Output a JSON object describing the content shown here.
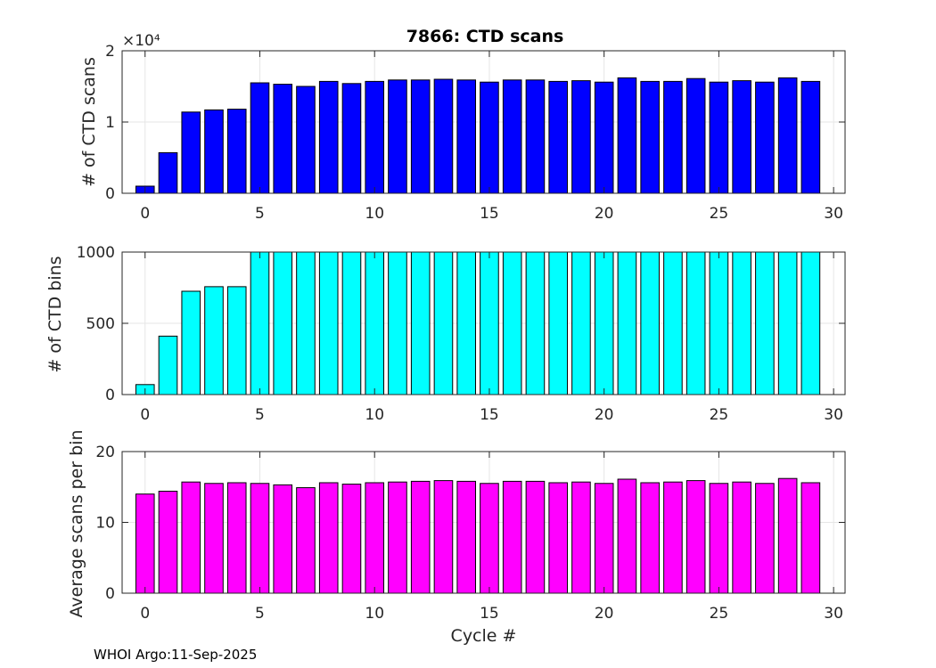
{
  "figure": {
    "title": "7866: CTD scans",
    "footer": "WHOI Argo:11-Sep-2025"
  },
  "chart_data": [
    {
      "type": "bar",
      "title": "7866: CTD scans",
      "xlabel": "",
      "ylabel": "# of CTD scans",
      "color": "#0000ff",
      "exponent_label": "×10⁴",
      "xlim": [
        -1,
        30.5
      ],
      "ylim": [
        0,
        20000
      ],
      "xticks": [
        0,
        5,
        10,
        15,
        20,
        25,
        30
      ],
      "yticks": [
        0,
        10000,
        20000
      ],
      "ytick_labels": [
        "0",
        "1",
        "2"
      ],
      "x": [
        0,
        1,
        2,
        3,
        4,
        5,
        6,
        7,
        8,
        9,
        10,
        11,
        12,
        13,
        14,
        15,
        16,
        17,
        18,
        19,
        20,
        21,
        22,
        23,
        24,
        25,
        26,
        27,
        28,
        29
      ],
      "values": [
        1000,
        5700,
        11400,
        11700,
        11800,
        15500,
        15300,
        15000,
        15700,
        15400,
        15700,
        15900,
        15900,
        16000,
        15900,
        15600,
        15900,
        15900,
        15700,
        15800,
        15600,
        16200,
        15700,
        15700,
        16100,
        15600,
        15800,
        15600,
        16200,
        15700
      ],
      "grid": true
    },
    {
      "type": "bar",
      "title": "",
      "xlabel": "",
      "ylabel": "# of CTD bins",
      "color": "#00ffff",
      "xlim": [
        -1,
        30.5
      ],
      "ylim": [
        0,
        1000
      ],
      "xticks": [
        0,
        5,
        10,
        15,
        20,
        25,
        30
      ],
      "yticks": [
        0,
        500,
        1000
      ],
      "ytick_labels": [
        "0",
        "500",
        "1000"
      ],
      "x": [
        0,
        1,
        2,
        3,
        4,
        5,
        6,
        7,
        8,
        9,
        10,
        11,
        12,
        13,
        14,
        15,
        16,
        17,
        18,
        19,
        20,
        21,
        22,
        23,
        24,
        25,
        26,
        27,
        28,
        29
      ],
      "values": [
        70,
        410,
        725,
        757,
        757,
        1000,
        1000,
        1000,
        1000,
        1000,
        1000,
        1000,
        1000,
        1000,
        1000,
        1000,
        1000,
        1000,
        1000,
        1000,
        1000,
        1000,
        1000,
        1000,
        1000,
        1000,
        1000,
        1000,
        1000,
        1000
      ],
      "grid": true
    },
    {
      "type": "bar",
      "title": "",
      "xlabel": "Cycle #",
      "ylabel": "Average scans per bin",
      "color": "#ff00ff",
      "xlim": [
        -1,
        30.5
      ],
      "ylim": [
        0,
        20
      ],
      "xticks": [
        0,
        5,
        10,
        15,
        20,
        25,
        30
      ],
      "yticks": [
        0,
        10,
        20
      ],
      "ytick_labels": [
        "0",
        "10",
        "20"
      ],
      "x": [
        0,
        1,
        2,
        3,
        4,
        5,
        6,
        7,
        8,
        9,
        10,
        11,
        12,
        13,
        14,
        15,
        16,
        17,
        18,
        19,
        20,
        21,
        22,
        23,
        24,
        25,
        26,
        27,
        28,
        29
      ],
      "values": [
        14.0,
        14.4,
        15.7,
        15.5,
        15.6,
        15.5,
        15.3,
        14.9,
        15.6,
        15.4,
        15.6,
        15.7,
        15.8,
        15.9,
        15.8,
        15.5,
        15.8,
        15.8,
        15.6,
        15.7,
        15.5,
        16.1,
        15.6,
        15.7,
        15.9,
        15.5,
        15.7,
        15.5,
        16.2,
        15.6
      ],
      "grid": true
    }
  ]
}
